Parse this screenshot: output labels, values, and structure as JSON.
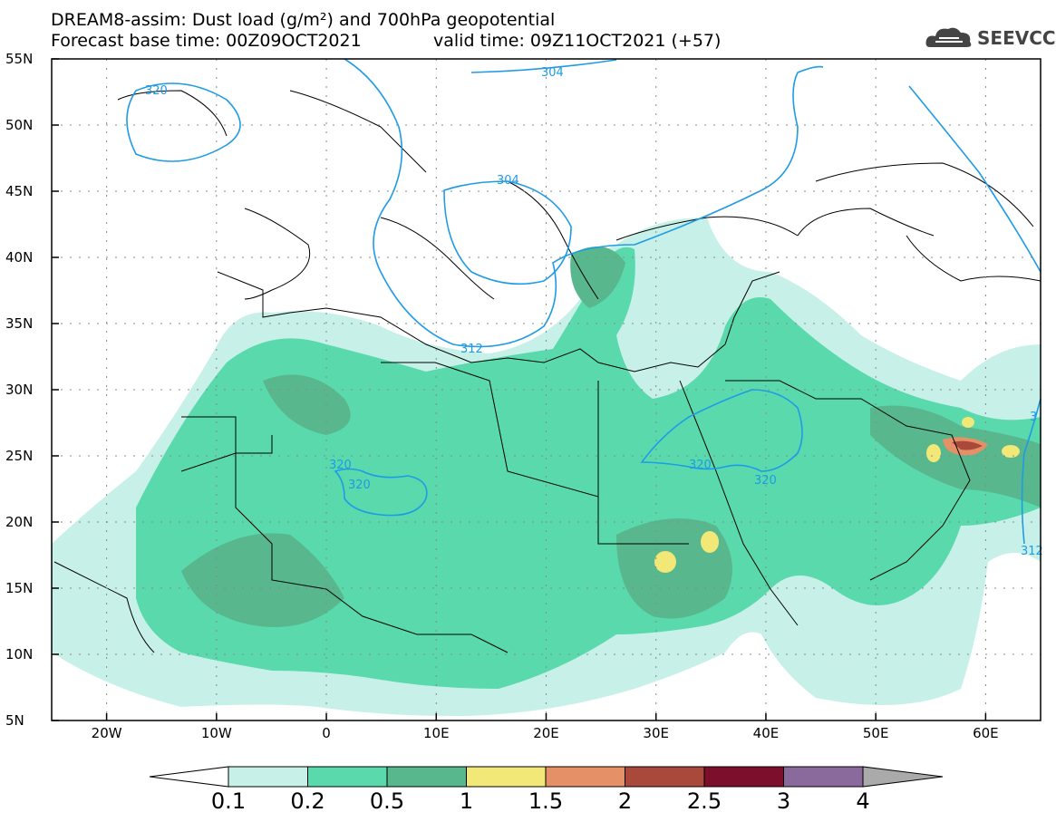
{
  "title": {
    "line1": "DREAM8-assim: Dust load (g/m²) and 700hPa geopotential",
    "line2": "Forecast base time: 00Z09OCT2021",
    "valid": "valid time: 09Z11OCT2021 (+57)"
  },
  "logo": {
    "text": "SEEVCCC",
    "icon": "cloud-icon"
  },
  "map": {
    "lon_range": [
      -25,
      65
    ],
    "lat_range": [
      5,
      55
    ],
    "y_ticks": [
      "55N",
      "50N",
      "45N",
      "40N",
      "35N",
      "30N",
      "25N",
      "20N",
      "15N",
      "10N",
      "5N"
    ],
    "x_ticks": [
      "20W",
      "10W",
      "0",
      "10E",
      "20E",
      "30E",
      "40E",
      "50E",
      "60E"
    ],
    "contour_labels": [
      "320",
      "304",
      "304",
      "312",
      "320",
      "320",
      "320",
      "320",
      "3",
      "312"
    ]
  },
  "colorbar": {
    "labels": [
      "0.1",
      "0.2",
      "0.5",
      "1",
      "1.5",
      "2",
      "2.5",
      "3",
      "4"
    ],
    "colors": [
      "#ffffff",
      "#c7f1e8",
      "#5ad9ad",
      "#59b78e",
      "#f1e878",
      "#e69067",
      "#a8493c",
      "#7c0f2b",
      "#8a6a9c",
      "#aaaaaa"
    ]
  }
}
